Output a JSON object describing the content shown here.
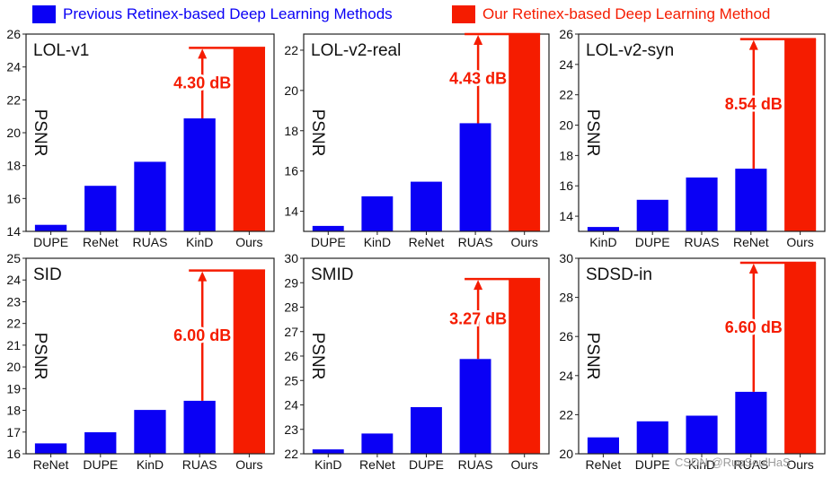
{
  "legend": {
    "previous_label": "Previous Retinex-based Deep Learning Methods",
    "previous_color": "#0a00f5",
    "ours_label": "Our Retinex-based Deep Learning Method",
    "ours_color": "#f51c00"
  },
  "watermark": "CSDN @RuoSoulHaS",
  "chart_data": [
    {
      "type": "bar",
      "title": "LOL-v1",
      "ylabel": "PSNR",
      "categories": [
        "DUPE",
        "ReNet",
        "RUAS",
        "KinD",
        "Ours"
      ],
      "values": [
        14.4,
        16.77,
        18.23,
        20.87,
        25.16
      ],
      "ylim": [
        14,
        26
      ],
      "yticks": [
        14,
        16,
        18,
        20,
        22,
        24,
        26
      ],
      "gain_label": "4.30 dB",
      "gain_from": 20.87,
      "gain_to": 25.16
    },
    {
      "type": "bar",
      "title": "LOL-v2-real",
      "ylabel": "PSNR",
      "categories": [
        "DUPE",
        "KinD",
        "ReNet",
        "RUAS",
        "Ours"
      ],
      "values": [
        13.27,
        14.74,
        15.47,
        18.37,
        22.8
      ],
      "ylim": [
        13,
        22.8
      ],
      "yticks": [
        14,
        16,
        18,
        20,
        22
      ],
      "gain_label": "4.43 dB",
      "gain_from": 18.37,
      "gain_to": 22.8
    },
    {
      "type": "bar",
      "title": "LOL-v2-syn",
      "ylabel": "PSNR",
      "categories": [
        "KinD",
        "DUPE",
        "RUAS",
        "ReNet",
        "Ours"
      ],
      "values": [
        13.29,
        15.08,
        16.55,
        17.13,
        25.67
      ],
      "ylim": [
        13,
        26
      ],
      "yticks": [
        14,
        16,
        18,
        20,
        22,
        24,
        26
      ],
      "gain_label": "8.54 dB",
      "gain_from": 17.13,
      "gain_to": 25.67
    },
    {
      "type": "bar",
      "title": "SID",
      "ylabel": "PSNR",
      "categories": [
        "ReNet",
        "DUPE",
        "KinD",
        "RUAS",
        "Ours"
      ],
      "values": [
        16.48,
        16.99,
        18.02,
        18.44,
        24.44
      ],
      "ylim": [
        16,
        25
      ],
      "yticks": [
        16,
        17,
        18,
        19,
        20,
        21,
        22,
        23,
        24,
        25
      ],
      "gain_label": "6.00 dB",
      "gain_from": 18.44,
      "gain_to": 24.44
    },
    {
      "type": "bar",
      "title": "SMID",
      "ylabel": "PSNR",
      "categories": [
        "KinD",
        "ReNet",
        "DUPE",
        "RUAS",
        "Ours"
      ],
      "values": [
        22.18,
        22.83,
        23.91,
        25.88,
        29.15
      ],
      "ylim": [
        22,
        30
      ],
      "yticks": [
        22,
        23,
        24,
        25,
        26,
        27,
        28,
        29,
        30
      ],
      "gain_label": "3.27 dB",
      "gain_from": 25.88,
      "gain_to": 29.15
    },
    {
      "type": "bar",
      "title": "SDSD-in",
      "ylabel": "PSNR",
      "categories": [
        "ReNet",
        "DUPE",
        "KinD",
        "RUAS",
        "Ours"
      ],
      "values": [
        20.84,
        21.66,
        21.95,
        23.17,
        29.77
      ],
      "ylim": [
        20,
        30
      ],
      "yticks": [
        20,
        22,
        24,
        26,
        28,
        30
      ],
      "gain_label": "6.60 dB",
      "gain_from": 23.17,
      "gain_to": 29.77
    }
  ]
}
